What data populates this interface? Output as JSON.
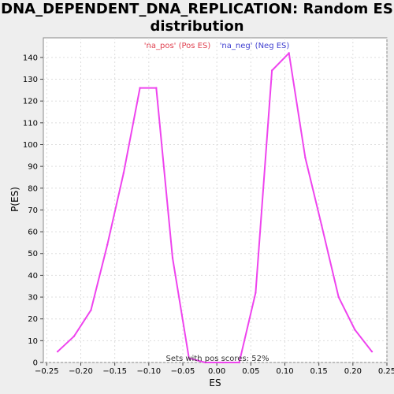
{
  "chart_data": {
    "type": "line",
    "title_line1": "DNA_DEPENDENT_DNA_REPLICATION: Random ES",
    "title_line2": "distribution",
    "xlabel": "ES",
    "ylabel": "P(ES)",
    "xlim": [
      -0.255,
      0.25
    ],
    "ylim": [
      0,
      149
    ],
    "xticks": [
      -0.25,
      -0.2,
      -0.15,
      -0.1,
      -0.05,
      0.0,
      0.05,
      0.1,
      0.15,
      0.2,
      0.25
    ],
    "xtick_labels": [
      "−0.25",
      "−0.20",
      "−0.15",
      "−0.10",
      "−0.05",
      "0.00",
      "0.05",
      "0.10",
      "0.15",
      "0.20",
      "0.25"
    ],
    "yticks": [
      0,
      10,
      20,
      30,
      40,
      50,
      60,
      70,
      80,
      90,
      100,
      110,
      120,
      130,
      140
    ],
    "grid": true,
    "legend": {
      "placement": "top-center",
      "pos_label": "'na_pos' (Pos ES)",
      "neg_label": "'na_neg' (Neg ES)",
      "pos_color": "#e0404f",
      "neg_color": "#4040d0"
    },
    "annotation": "Sets with pos scores: 52%",
    "series": [
      {
        "color": "#ee44ee",
        "x": [
          -0.234,
          -0.21,
          -0.185,
          -0.161,
          -0.137,
          -0.113,
          -0.089,
          -0.065,
          -0.041,
          -0.017,
          0.009,
          0.033,
          0.057,
          0.081,
          0.106,
          0.13,
          0.154,
          0.179,
          0.203,
          0.228
        ],
        "y": [
          5,
          12,
          24,
          54,
          87,
          126,
          126,
          48,
          2,
          0,
          0,
          0,
          32,
          134,
          142,
          94,
          63,
          30,
          15,
          5
        ]
      }
    ]
  }
}
